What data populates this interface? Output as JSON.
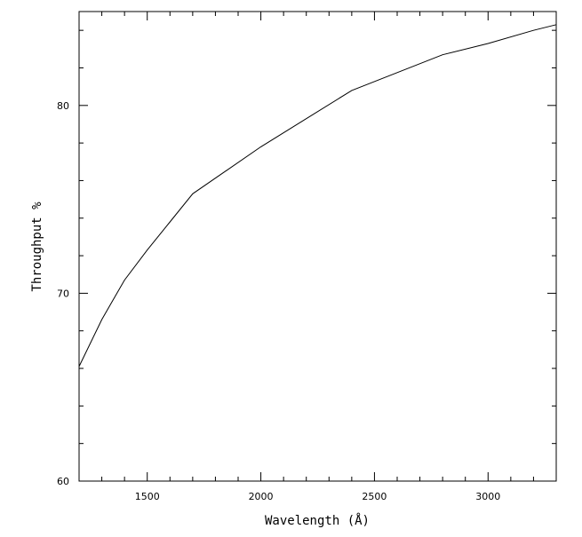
{
  "chart_data": {
    "type": "line",
    "title": "",
    "xlabel": "Wavelength (Å)",
    "ylabel": "Throughput %",
    "xlim": [
      1200,
      3300
    ],
    "ylim": [
      60,
      85
    ],
    "x_major_ticks": [
      1500,
      2000,
      2500,
      3000
    ],
    "x_minor_step": 100,
    "y_major_ticks": [
      60,
      70,
      80
    ],
    "y_minor_step": 2,
    "grid": false,
    "legend": "none",
    "line_color": "#000000",
    "series": [
      {
        "x": [
          1200,
          1300,
          1400,
          1500,
          1600,
          1700,
          2000,
          2400,
          2800,
          3000,
          3200,
          3300
        ],
        "y": [
          66.1,
          68.6,
          70.7,
          72.3,
          73.8,
          75.3,
          77.8,
          80.8,
          82.7,
          83.3,
          84.0,
          84.3
        ]
      }
    ]
  }
}
